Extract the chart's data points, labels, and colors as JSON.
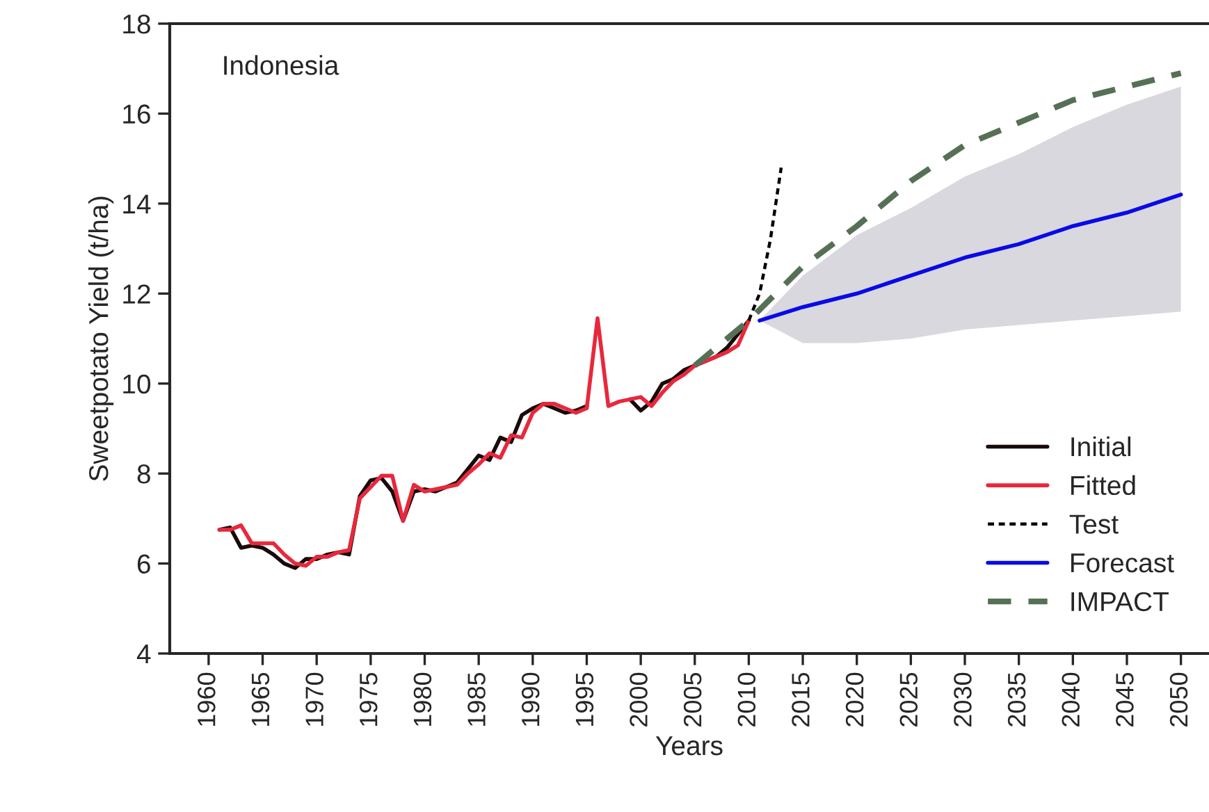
{
  "chart_data": {
    "type": "line",
    "title": "Indonesia",
    "xlabel": "Years",
    "ylabel": "Sweetpotato Yield (t/ha)",
    "xlim": [
      1956.4,
      2052.6
    ],
    "xticks": [
      1960,
      1965,
      1970,
      1975,
      1980,
      1985,
      1990,
      1995,
      2000,
      2005,
      2010,
      2015,
      2020,
      2025,
      2030,
      2035,
      2040,
      2045,
      2050
    ],
    "ylim": [
      4,
      18
    ],
    "yticks": [
      4,
      6,
      8,
      10,
      12,
      14,
      16,
      18
    ],
    "grid": false,
    "legend": "bottom right",
    "series": [
      {
        "name": "Initial",
        "color": "#1a0a0a",
        "line_style": "solid",
        "x": [
          1961,
          1962,
          1963,
          1964,
          1965,
          1966,
          1967,
          1968,
          1969,
          1970,
          1971,
          1972,
          1973,
          1974,
          1975,
          1976,
          1977,
          1978,
          1979,
          1980,
          1981,
          1982,
          1983,
          1984,
          1985,
          1986,
          1987,
          1988,
          1989,
          1990,
          1991,
          1992,
          1993,
          1994,
          1995,
          1996,
          1997,
          1998,
          1999,
          2000,
          2001,
          2002,
          2003,
          2004,
          2005,
          2006,
          2007,
          2008,
          2009,
          2010
        ],
        "values": [
          6.75,
          6.8,
          6.35,
          6.4,
          6.35,
          6.2,
          6.0,
          5.9,
          6.1,
          6.1,
          6.2,
          6.25,
          6.2,
          7.5,
          7.85,
          7.9,
          7.6,
          6.95,
          7.6,
          7.65,
          7.6,
          7.7,
          7.8,
          8.1,
          8.4,
          8.3,
          8.8,
          8.7,
          9.3,
          9.45,
          9.55,
          9.45,
          9.35,
          9.4,
          9.5,
          null,
          null,
          null,
          9.65,
          9.4,
          9.6,
          10.0,
          10.1,
          10.3,
          10.4,
          10.5,
          10.6,
          10.8,
          11.1,
          11.4
        ]
      },
      {
        "name": "Fitted",
        "color": "#e8283c",
        "line_style": "solid",
        "x": [
          1961,
          1962,
          1963,
          1964,
          1965,
          1966,
          1967,
          1968,
          1969,
          1970,
          1971,
          1972,
          1973,
          1974,
          1975,
          1976,
          1977,
          1978,
          1979,
          1980,
          1981,
          1982,
          1983,
          1984,
          1985,
          1986,
          1987,
          1988,
          1989,
          1990,
          1991,
          1992,
          1993,
          1994,
          1995,
          1996,
          1997,
          1998,
          1999,
          2000,
          2001,
          2002,
          2003,
          2004,
          2005,
          2006,
          2007,
          2008,
          2009,
          2010
        ],
        "values": [
          6.75,
          6.75,
          6.85,
          6.45,
          6.45,
          6.45,
          6.2,
          6.0,
          5.95,
          6.15,
          6.15,
          6.25,
          6.3,
          7.45,
          7.7,
          7.95,
          7.95,
          6.95,
          7.75,
          7.6,
          7.65,
          7.7,
          7.75,
          8.0,
          8.2,
          8.45,
          8.35,
          8.85,
          8.8,
          9.35,
          9.55,
          9.55,
          9.45,
          9.35,
          9.45,
          11.45,
          9.5,
          9.6,
          9.65,
          9.7,
          9.5,
          9.8,
          10.05,
          10.2,
          10.4,
          10.5,
          10.6,
          10.7,
          10.85,
          11.4
        ]
      },
      {
        "name": "Test",
        "color": "#000000",
        "line_style": "dotted",
        "x": [
          2010,
          2011,
          2012,
          2013
        ],
        "values": [
          11.4,
          12.0,
          13.2,
          14.8
        ]
      },
      {
        "name": "Forecast",
        "color": "#0a0ae6",
        "line_style": "solid",
        "x": [
          2011,
          2015,
          2020,
          2025,
          2030,
          2035,
          2040,
          2045,
          2050
        ],
        "values": [
          11.4,
          11.7,
          12.0,
          12.4,
          12.8,
          13.1,
          13.5,
          13.8,
          14.2
        ],
        "lower": [
          11.4,
          10.9,
          10.9,
          11.0,
          11.2,
          11.3,
          11.4,
          11.5,
          11.6
        ],
        "upper": [
          11.4,
          12.4,
          13.3,
          13.9,
          14.6,
          15.1,
          15.7,
          16.2,
          16.6
        ]
      },
      {
        "name": "IMPACT",
        "color": "#567056",
        "line_style": "dashed",
        "x": [
          2005,
          2010,
          2015,
          2020,
          2025,
          2030,
          2035,
          2040,
          2045,
          2050
        ],
        "values": [
          10.4,
          11.4,
          12.6,
          13.5,
          14.5,
          15.3,
          15.8,
          16.3,
          16.6,
          16.9
        ]
      }
    ]
  }
}
